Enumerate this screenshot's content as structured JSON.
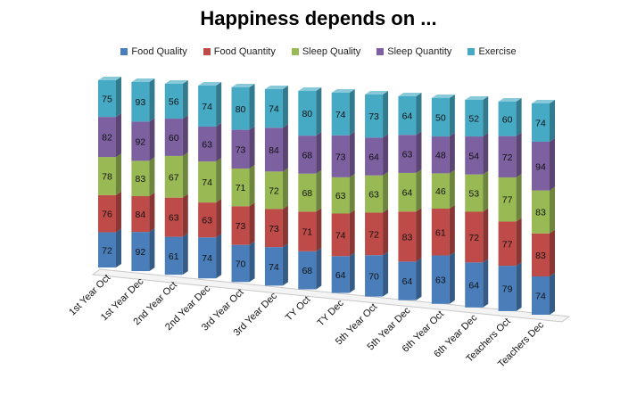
{
  "chart_data": {
    "type": "bar",
    "stacked": true,
    "three_d": true,
    "title": "Happiness depends on ...",
    "xlabel": "",
    "ylabel": "",
    "legend_position": "top",
    "categories": [
      "1st Year Oct",
      "1st Year Dec",
      "2nd Year Oct",
      "2nd Year Dec",
      "3rd Year Oct",
      "3rd Year Dec",
      "TY Oct",
      "TY Dec",
      "5th Year Oct",
      "5th Year Dec",
      "6th Year Oct",
      "6th Year Dec",
      "Teachers Oct",
      "Teachers Dec"
    ],
    "series": [
      {
        "name": "Food Quality",
        "color": "#4a7ebb",
        "values": [
          72,
          92,
          61,
          74,
          70,
          74,
          68,
          64,
          70,
          64,
          63,
          64,
          79,
          74
        ]
      },
      {
        "name": "Food Quantity",
        "color": "#be4b48",
        "values": [
          76,
          84,
          63,
          63,
          73,
          73,
          71,
          74,
          72,
          83,
          61,
          72,
          77,
          83
        ]
      },
      {
        "name": "Sleep Quality",
        "color": "#98b954",
        "values": [
          78,
          83,
          67,
          74,
          71,
          72,
          68,
          63,
          63,
          64,
          46,
          53,
          77,
          83
        ]
      },
      {
        "name": "Sleep Quantity",
        "color": "#7d60a0",
        "values": [
          82,
          92,
          60,
          63,
          73,
          84,
          68,
          73,
          64,
          63,
          48,
          54,
          72,
          94
        ]
      },
      {
        "name": "Exercise",
        "color": "#46aac5",
        "values": [
          75,
          93,
          56,
          74,
          80,
          74,
          80,
          74,
          73,
          64,
          50,
          52,
          60,
          74
        ]
      }
    ]
  }
}
